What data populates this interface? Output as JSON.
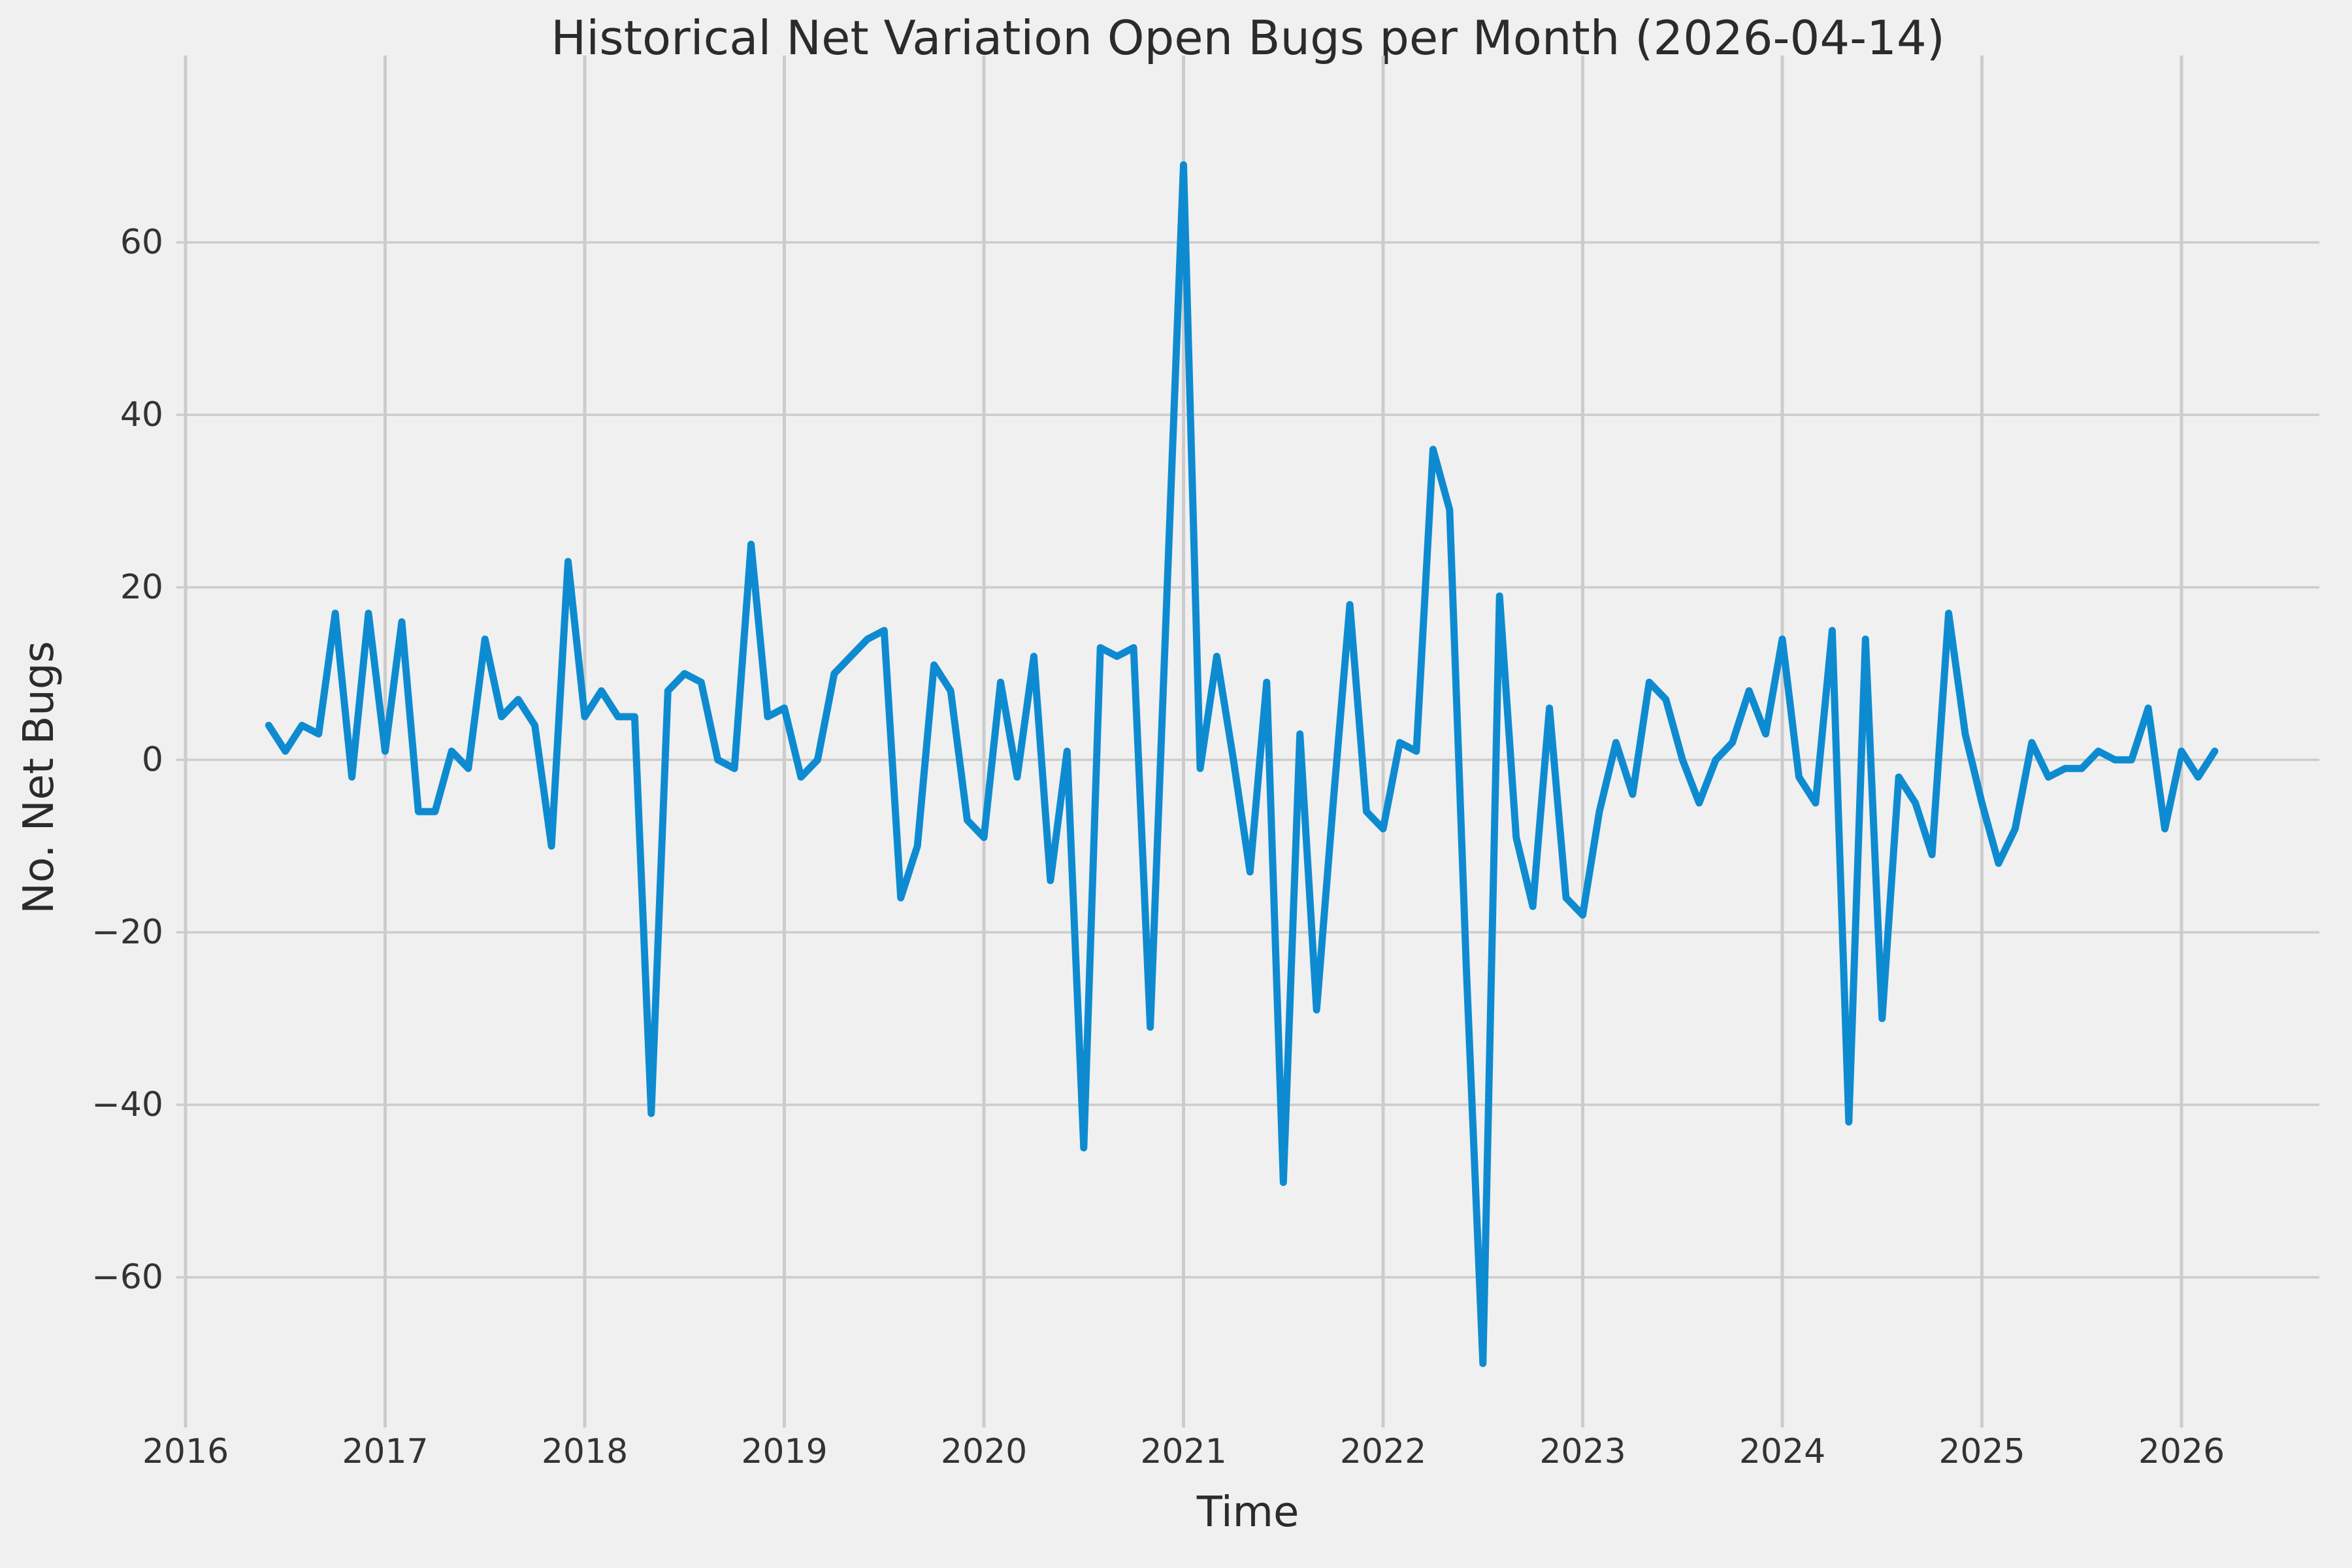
{
  "title": "Historical Net Variation Open Bugs per Month (2026-04-14)",
  "colors": {
    "background": "#f0f0f0",
    "grid": "#cccccc",
    "line": "#0e8bd0",
    "text": "#333333",
    "title_text": "#2b2b2b"
  },
  "chart_data": {
    "type": "line",
    "title": "Historical Net Variation Open Bugs per Month (2026-04-14)",
    "xlabel": "Time",
    "ylabel": "No. Net Bugs",
    "legend": null,
    "grid": true,
    "line_color": "#0e8bd0",
    "xlim": [
      2015.95,
      2026.69
    ],
    "ylim": [
      -77,
      82
    ],
    "x_ticks": [
      2016,
      2017,
      2018,
      2019,
      2020,
      2021,
      2022,
      2023,
      2024,
      2025,
      2026
    ],
    "x_tick_labels": [
      "2016",
      "2017",
      "2018",
      "2019",
      "2020",
      "2021",
      "2022",
      "2023",
      "2024",
      "2025",
      "2026"
    ],
    "y_ticks": [
      -60,
      -40,
      -20,
      0,
      20,
      40,
      60
    ],
    "y_tick_labels": [
      "−60",
      "−40",
      "−20",
      "0",
      "20",
      "40",
      "60"
    ],
    "series": [
      {
        "name": "net-open-bugs-per-month",
        "points": [
          [
            "2016-06",
            4
          ],
          [
            "2016-07",
            1
          ],
          [
            "2016-08",
            4
          ],
          [
            "2016-09",
            3
          ],
          [
            "2016-10",
            17
          ],
          [
            "2016-11",
            -2
          ],
          [
            "2016-12",
            17
          ],
          [
            "2017-01",
            1
          ],
          [
            "2017-02",
            16
          ],
          [
            "2017-03",
            -6
          ],
          [
            "2017-04",
            -6
          ],
          [
            "2017-05",
            1
          ],
          [
            "2017-06",
            -1
          ],
          [
            "2017-07",
            14
          ],
          [
            "2017-08",
            5
          ],
          [
            "2017-09",
            7
          ],
          [
            "2017-10",
            4
          ],
          [
            "2017-11",
            -10
          ],
          [
            "2017-12",
            23
          ],
          [
            "2018-01",
            5
          ],
          [
            "2018-02",
            8
          ],
          [
            "2018-03",
            5
          ],
          [
            "2018-04",
            5
          ],
          [
            "2018-05",
            -41
          ],
          [
            "2018-06",
            8
          ],
          [
            "2018-07",
            10
          ],
          [
            "2018-08",
            9
          ],
          [
            "2018-09",
            0
          ],
          [
            "2018-10",
            -1
          ],
          [
            "2018-11",
            25
          ],
          [
            "2018-12",
            5
          ],
          [
            "2019-01",
            6
          ],
          [
            "2019-02",
            -2
          ],
          [
            "2019-03",
            0
          ],
          [
            "2019-04",
            10
          ],
          [
            "2019-05",
            12
          ],
          [
            "2019-06",
            14
          ],
          [
            "2019-07",
            15
          ],
          [
            "2019-08",
            -16
          ],
          [
            "2019-09",
            -10
          ],
          [
            "2019-10",
            11
          ],
          [
            "2019-11",
            8
          ],
          [
            "2019-12",
            -7
          ],
          [
            "2020-01",
            -9
          ],
          [
            "2020-02",
            9
          ],
          [
            "2020-03",
            -2
          ],
          [
            "2020-04",
            12
          ],
          [
            "2020-05",
            -14
          ],
          [
            "2020-06",
            1
          ],
          [
            "2020-07",
            -45
          ],
          [
            "2020-08",
            13
          ],
          [
            "2020-09",
            12
          ],
          [
            "2020-10",
            13
          ],
          [
            "2020-11",
            -31
          ],
          [
            "2020-12",
            19
          ],
          [
            "2021-01",
            69
          ],
          [
            "2021-02",
            -1
          ],
          [
            "2021-03",
            12
          ],
          [
            "2021-04",
            0
          ],
          [
            "2021-05",
            -13
          ],
          [
            "2021-06",
            9
          ],
          [
            "2021-07",
            -49
          ],
          [
            "2021-08",
            3
          ],
          [
            "2021-09",
            -29
          ],
          [
            "2021-10",
            -5
          ],
          [
            "2021-11",
            18
          ],
          [
            "2021-12",
            -6
          ],
          [
            "2022-01",
            -8
          ],
          [
            "2022-02",
            2
          ],
          [
            "2022-03",
            1
          ],
          [
            "2022-04",
            36
          ],
          [
            "2022-05",
            29
          ],
          [
            "2022-06",
            -24
          ],
          [
            "2022-07",
            -70
          ],
          [
            "2022-08",
            19
          ],
          [
            "2022-09",
            -9
          ],
          [
            "2022-10",
            -17
          ],
          [
            "2022-11",
            6
          ],
          [
            "2022-12",
            -16
          ],
          [
            "2023-01",
            -18
          ],
          [
            "2023-02",
            -6
          ],
          [
            "2023-03",
            2
          ],
          [
            "2023-04",
            -4
          ],
          [
            "2023-05",
            9
          ],
          [
            "2023-06",
            7
          ],
          [
            "2023-07",
            0
          ],
          [
            "2023-08",
            -5
          ],
          [
            "2023-09",
            0
          ],
          [
            "2023-10",
            2
          ],
          [
            "2023-11",
            8
          ],
          [
            "2023-12",
            3
          ],
          [
            "2024-01",
            14
          ],
          [
            "2024-02",
            -2
          ],
          [
            "2024-03",
            -5
          ],
          [
            "2024-04",
            15
          ],
          [
            "2024-05",
            -42
          ],
          [
            "2024-06",
            14
          ],
          [
            "2024-07",
            -30
          ],
          [
            "2024-08",
            -2
          ],
          [
            "2024-09",
            -5
          ],
          [
            "2024-10",
            -11
          ],
          [
            "2024-11",
            17
          ],
          [
            "2024-12",
            3
          ],
          [
            "2025-01",
            -5
          ],
          [
            "2025-02",
            -12
          ],
          [
            "2025-03",
            -8
          ],
          [
            "2025-04",
            2
          ],
          [
            "2025-05",
            -2
          ],
          [
            "2025-06",
            -1
          ],
          [
            "2025-07",
            -1
          ],
          [
            "2025-08",
            1
          ],
          [
            "2025-09",
            0
          ],
          [
            "2025-10",
            0
          ],
          [
            "2025-11",
            6
          ],
          [
            "2025-12",
            -8
          ],
          [
            "2026-01",
            1
          ],
          [
            "2026-02",
            -2
          ],
          [
            "2026-03",
            1
          ]
        ]
      }
    ]
  }
}
